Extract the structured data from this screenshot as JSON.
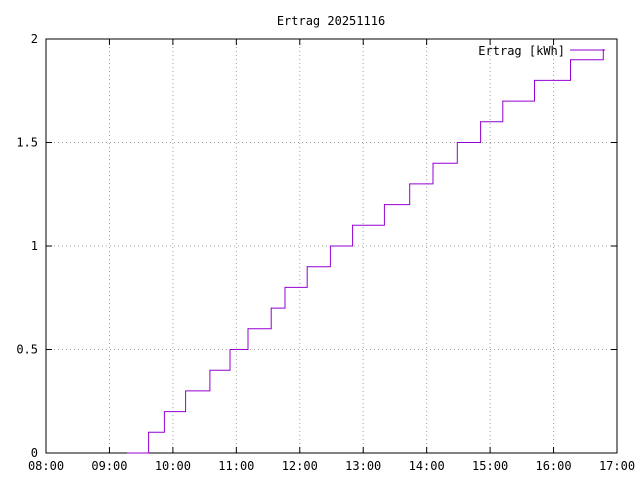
{
  "chart_data": {
    "type": "line",
    "title": "Ertrag 20251116",
    "xlabel": "",
    "ylabel": "",
    "grid": true,
    "legend_position": "top-right",
    "xlim": [
      "08:00",
      "17:00"
    ],
    "ylim": [
      0,
      2
    ],
    "x_ticks": [
      "08:00",
      "09:00",
      "10:00",
      "11:00",
      "12:00",
      "13:00",
      "14:00",
      "15:00",
      "16:00",
      "17:00"
    ],
    "y_ticks": [
      "0",
      "0.5",
      "1",
      "1.5",
      "2"
    ],
    "series": [
      {
        "name": "Ertrag [kWh]",
        "color": "#9400d3",
        "step": true,
        "x": [
          "09:17",
          "09:37",
          "09:52",
          "10:12",
          "10:35",
          "10:54",
          "11:11",
          "11:33",
          "11:46",
          "12:07",
          "12:29",
          "12:50",
          "13:20",
          "13:44",
          "14:06",
          "14:29",
          "14:51",
          "15:12",
          "15:42",
          "16:16",
          "16:47"
        ],
        "values": [
          0,
          0.1,
          0.2,
          0.3,
          0.4,
          0.5,
          0.6,
          0.7,
          0.8,
          0.9,
          1.0,
          1.1,
          1.2,
          1.3,
          1.4,
          1.5,
          1.6,
          1.7,
          1.8,
          1.9,
          1.95
        ]
      }
    ]
  }
}
